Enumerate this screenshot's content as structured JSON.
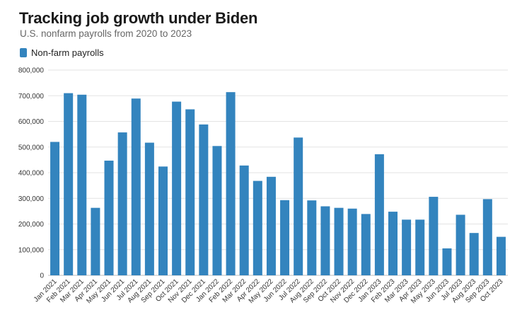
{
  "chart_data": {
    "type": "bar",
    "title": "Tracking job growth under Biden",
    "subtitle": "U.S. nonfarm payrolls from 2020 to 2023",
    "legend": {
      "position": "top-left",
      "entries": [
        "Non-farm payrolls"
      ]
    },
    "color": "#3384be",
    "grid": true,
    "ylim": [
      0,
      800000
    ],
    "yticks": [
      0,
      100000,
      200000,
      300000,
      400000,
      500000,
      600000,
      700000,
      800000
    ],
    "ytick_labels": [
      "0",
      "100,000",
      "200,000",
      "300,000",
      "400,000",
      "500,000",
      "600,000",
      "700,000",
      "800,000"
    ],
    "categories": [
      "Jan 2021",
      "Feb 2021",
      "Mar 2021",
      "Apr 2021",
      "May 2021",
      "Jun 2021",
      "Jul 2021",
      "Aug 2021",
      "Sep 2021",
      "Oct 2021",
      "Nov 2021",
      "Dec 2021",
      "Jan 2022",
      "Feb 2022",
      "Mar 2022",
      "Apr 2022",
      "May 2022",
      "Jun 2022",
      "Jul 2022",
      "Aug 2022",
      "Sep 2022",
      "Oct 2022",
      "Nov 2022",
      "Dec 2022",
      "Jan 2023",
      "Feb 2023",
      "Mar 2023",
      "Apr 2023",
      "May 2023",
      "Jun 2023",
      "Jul 2023",
      "Aug 2023",
      "Sep 2023",
      "Oct 2023"
    ],
    "series": [
      {
        "name": "Non-farm payrolls",
        "values": [
          520000,
          710000,
          704000,
          263000,
          447000,
          557000,
          689000,
          517000,
          424000,
          677000,
          647000,
          588000,
          504000,
          714000,
          428000,
          368000,
          384000,
          293000,
          537000,
          292000,
          269000,
          263000,
          260000,
          239000,
          472000,
          248000,
          217000,
          217000,
          306000,
          105000,
          236000,
          165000,
          297000,
          150000
        ]
      }
    ]
  }
}
